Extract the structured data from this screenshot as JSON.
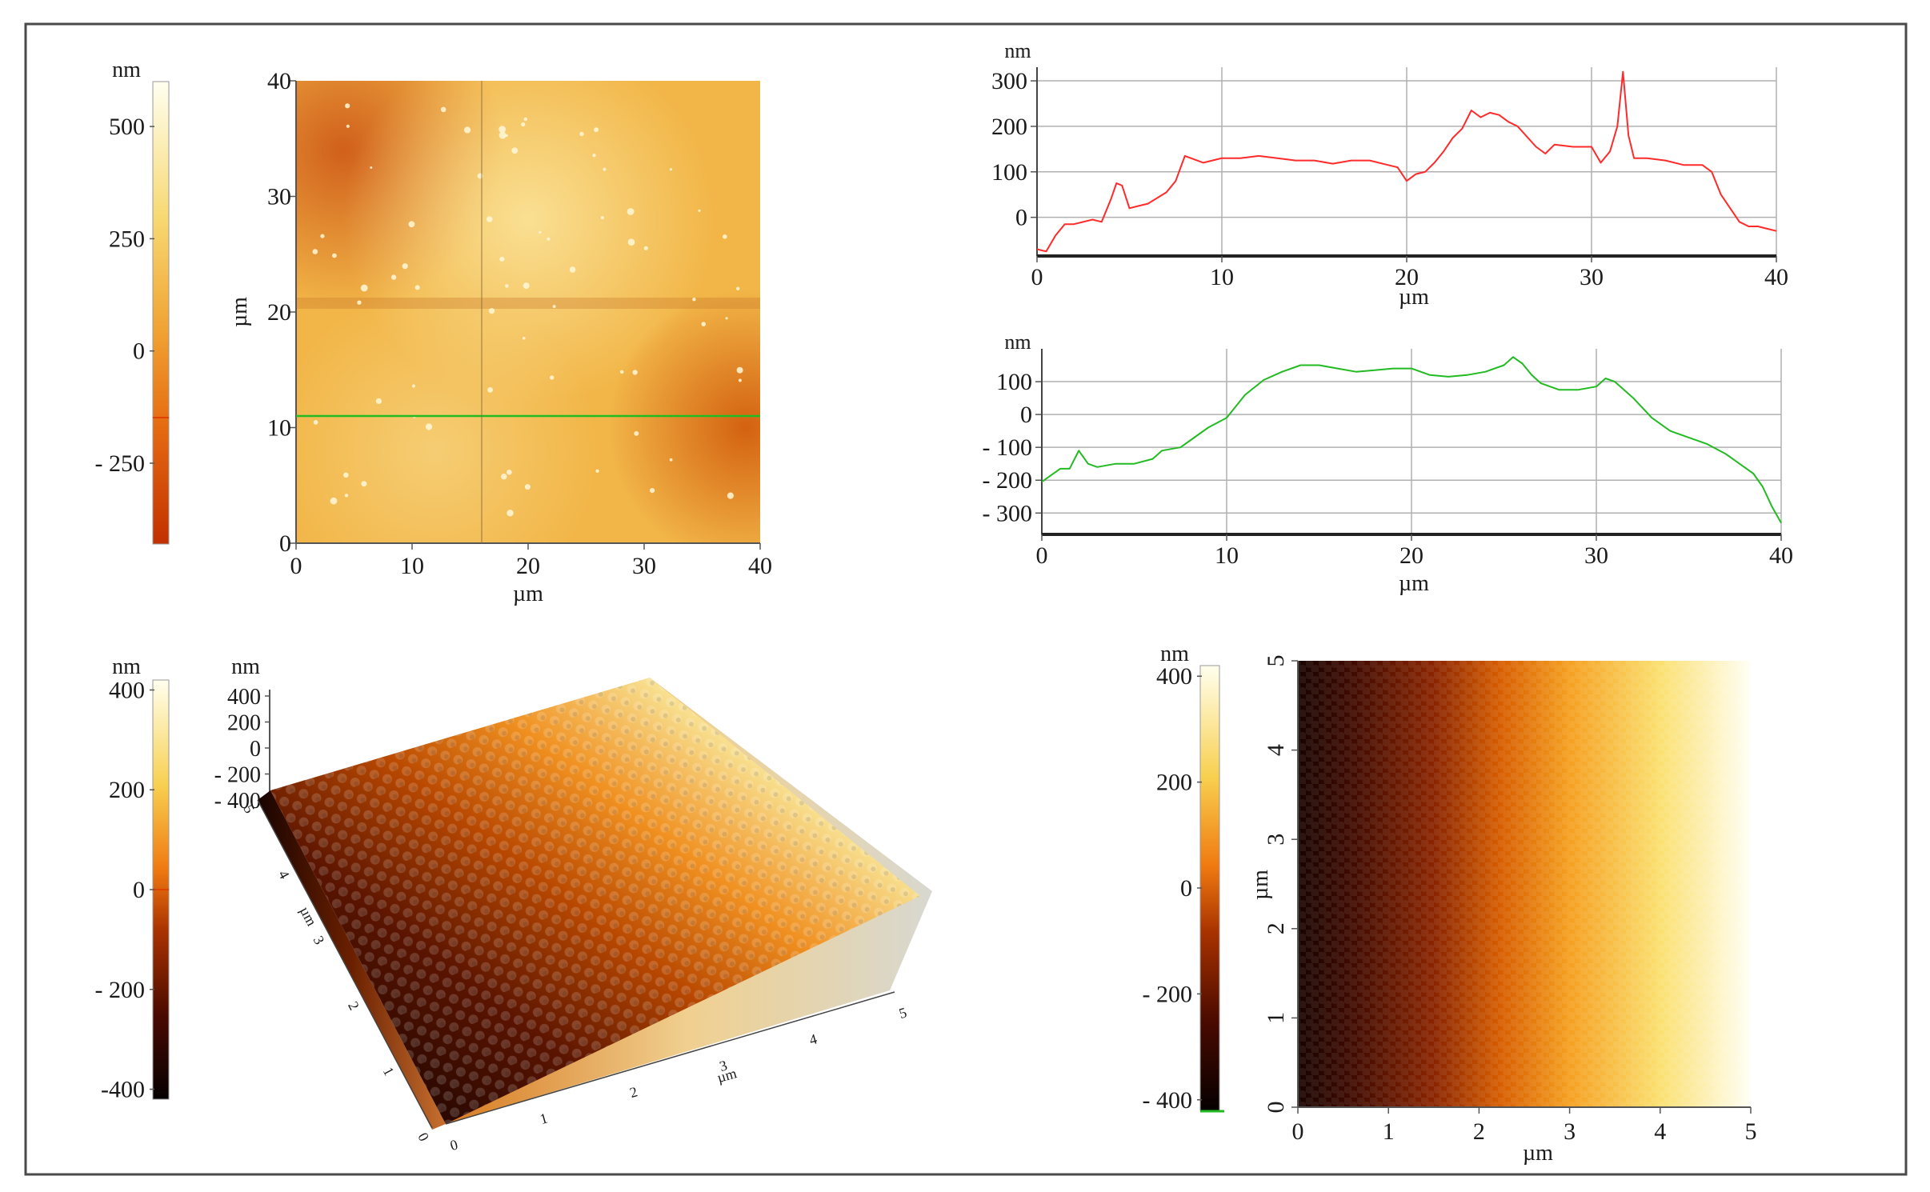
{
  "chart_data": [
    {
      "id": "afm_2d_large",
      "type": "heatmap",
      "colorbar": {
        "unit": "nm",
        "ticks": [
          "500",
          "250",
          "0",
          "- 250"
        ],
        "tick_values": [
          500,
          250,
          0,
          -250
        ],
        "range": [
          -430,
          600
        ]
      },
      "xlabel": "µm",
      "ylabel": "µm",
      "xticks": [
        "0",
        "10",
        "20",
        "30",
        "40"
      ],
      "yticks": [
        "0",
        "10",
        "20",
        "30",
        "40"
      ],
      "xlim": [
        0,
        40
      ],
      "ylim": [
        0,
        40
      ],
      "profile_lines": [
        {
          "orientation": "horizontal",
          "at_um": 11,
          "color": "#22bb22"
        },
        {
          "orientation": "vertical",
          "at_um": 16,
          "color": "#8a6a40"
        }
      ]
    },
    {
      "id": "profile_red",
      "type": "line",
      "ylabel": "nm",
      "xlabel": "µm",
      "yticks": [
        "300",
        "200",
        "100",
        "0"
      ],
      "ytick_values": [
        300,
        200,
        100,
        0
      ],
      "xticks": [
        "0",
        "10",
        "20",
        "30",
        "40"
      ],
      "xlim": [
        0,
        40
      ],
      "ylim": [
        -85,
        330
      ],
      "color": "#ff2a2a",
      "x": [
        0,
        0.5,
        1,
        1.5,
        2,
        3,
        3.5,
        4,
        4.3,
        4.6,
        5,
        5.5,
        6,
        7,
        7.5,
        8,
        9,
        10,
        11,
        12,
        13,
        14,
        15,
        16,
        17,
        18,
        19,
        19.5,
        20,
        20.5,
        21,
        21.5,
        22,
        22.5,
        23,
        23.5,
        24,
        24.5,
        25,
        25.5,
        26,
        27,
        27.5,
        28,
        29,
        30,
        30.5,
        31,
        31.4,
        31.7,
        32,
        32.3,
        33,
        34,
        35,
        36,
        36.5,
        37,
        37.5,
        38,
        38.5,
        39,
        39.5,
        40
      ],
      "y": [
        -70,
        -75,
        -40,
        -15,
        -15,
        -5,
        -10,
        40,
        75,
        70,
        20,
        25,
        30,
        55,
        80,
        135,
        120,
        130,
        130,
        135,
        130,
        125,
        125,
        118,
        125,
        125,
        115,
        110,
        80,
        95,
        100,
        120,
        145,
        175,
        195,
        235,
        220,
        230,
        225,
        210,
        200,
        155,
        140,
        160,
        155,
        155,
        120,
        145,
        200,
        320,
        180,
        130,
        130,
        125,
        115,
        115,
        100,
        50,
        20,
        -10,
        -20,
        -20,
        -25,
        -30
      ]
    },
    {
      "id": "profile_green",
      "type": "line",
      "ylabel": "nm",
      "xlabel": "µm",
      "yticks": [
        "100",
        "0",
        "- 100",
        "- 200",
        "- 300"
      ],
      "ytick_values": [
        100,
        0,
        -100,
        -200,
        -300
      ],
      "xticks": [
        "0",
        "10",
        "20",
        "30",
        "40"
      ],
      "xlim": [
        0,
        40
      ],
      "ylim": [
        -365,
        200
      ],
      "color": "#22bb22",
      "x": [
        0,
        0.5,
        1,
        1.5,
        2,
        2.5,
        3,
        4,
        5,
        6,
        6.5,
        7,
        7.5,
        8,
        9,
        10,
        11,
        12,
        13,
        14,
        15,
        16,
        17,
        18,
        19,
        20,
        21,
        22,
        23,
        24,
        25,
        25.5,
        26,
        26.5,
        27,
        28,
        29,
        30,
        30.5,
        31,
        32,
        33,
        34,
        35,
        36,
        37,
        38,
        38.5,
        39,
        39.5,
        40
      ],
      "y": [
        -205,
        -185,
        -165,
        -165,
        -110,
        -150,
        -160,
        -150,
        -150,
        -135,
        -110,
        -105,
        -100,
        -80,
        -40,
        -10,
        60,
        105,
        130,
        150,
        150,
        140,
        130,
        135,
        140,
        140,
        120,
        115,
        120,
        130,
        150,
        175,
        155,
        120,
        95,
        75,
        75,
        85,
        110,
        100,
        50,
        -10,
        -50,
        -70,
        -90,
        -120,
        -160,
        -180,
        -220,
        -280,
        -330
      ]
    },
    {
      "id": "afm_3d",
      "type": "heatmap",
      "colorbar": {
        "unit": "nm",
        "ticks": [
          "400",
          "200",
          "0",
          "- 200",
          "-400"
        ],
        "tick_values": [
          400,
          200,
          0,
          -200,
          -400
        ],
        "range": [
          -420,
          420
        ]
      },
      "z_axis": {
        "unit": "nm",
        "ticks": [
          "400",
          "200",
          "0",
          "- 200",
          "- 400"
        ]
      },
      "x_axis": {
        "label": "µm",
        "ticks": [
          "0",
          "1",
          "2",
          "3",
          "4",
          "5"
        ]
      },
      "y_axis": {
        "label": "µm",
        "ticks": [
          "0",
          "1",
          "2",
          "3",
          "4",
          "5"
        ]
      }
    },
    {
      "id": "afm_2d_small",
      "type": "heatmap",
      "colorbar": {
        "unit": "nm",
        "ticks": [
          "400",
          "200",
          "0",
          "- 200",
          "- 400"
        ],
        "tick_values": [
          400,
          200,
          0,
          -200,
          -400
        ],
        "range": [
          -420,
          420
        ]
      },
      "xlabel": "µm",
      "ylabel": "µm",
      "xticks": [
        "0",
        "1",
        "2",
        "3",
        "4",
        "5"
      ],
      "yticks": [
        "0",
        "1",
        "2",
        "3",
        "4",
        "5"
      ],
      "xlim": [
        0,
        5
      ],
      "ylim": [
        0,
        5
      ]
    }
  ]
}
